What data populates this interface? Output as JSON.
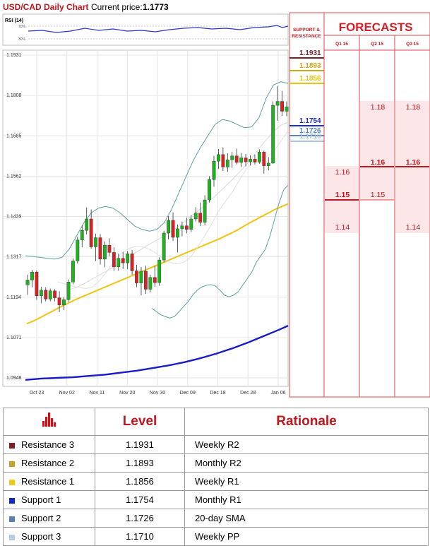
{
  "header": {
    "title": "USD/CAD Daily Chart",
    "price_label": "Current price:",
    "price_value": "1.1773"
  },
  "rsi": {
    "label": "RSI (14)",
    "levels": [
      "70%",
      "30%"
    ]
  },
  "chart_data": {
    "type": "candlestick",
    "y_ticks": [
      "1.1931",
      "1.1808",
      "1.1685",
      "1.1562",
      "1.1439",
      "1.1317",
      "1.1194",
      "1.1071",
      "1.0948"
    ],
    "x_ticks": [
      "Oct 23",
      "Nov 02",
      "Nov 11",
      "Nov 20",
      "Nov 30",
      "Dec 09",
      "Dec 18",
      "Dec 28",
      "Jan 06"
    ],
    "ylim": [
      1.0948,
      1.1931
    ],
    "candles": [
      [
        1.1231,
        1.1262,
        1.1201,
        1.1246
      ],
      [
        1.1246,
        1.1277,
        1.1224,
        1.127
      ],
      [
        1.127,
        1.1275,
        1.1186,
        1.1198
      ],
      [
        1.1198,
        1.1225,
        1.1175,
        1.1215
      ],
      [
        1.1215,
        1.1224,
        1.1181,
        1.1188
      ],
      [
        1.1188,
        1.122,
        1.1181,
        1.1213
      ],
      [
        1.1213,
        1.1218,
        1.1181,
        1.1192
      ],
      [
        1.1192,
        1.1212,
        1.1148,
        1.117
      ],
      [
        1.117,
        1.1194,
        1.1155,
        1.1186
      ],
      [
        1.1186,
        1.1248,
        1.118,
        1.124
      ],
      [
        1.124,
        1.1312,
        1.1233,
        1.1304
      ],
      [
        1.1304,
        1.1378,
        1.1296,
        1.1368
      ],
      [
        1.1368,
        1.1413,
        1.1346,
        1.1397
      ],
      [
        1.1397,
        1.1467,
        1.1385,
        1.1432
      ],
      [
        1.1432,
        1.1461,
        1.1341,
        1.1347
      ],
      [
        1.1347,
        1.1387,
        1.1304,
        1.1375
      ],
      [
        1.1375,
        1.1386,
        1.1293,
        1.131
      ],
      [
        1.131,
        1.1364,
        1.1285,
        1.1352
      ],
      [
        1.1352,
        1.1373,
        1.1318,
        1.133
      ],
      [
        1.133,
        1.1346,
        1.1274,
        1.1286
      ],
      [
        1.1286,
        1.1326,
        1.1275,
        1.1312
      ],
      [
        1.1312,
        1.1332,
        1.128,
        1.1298
      ],
      [
        1.1298,
        1.1334,
        1.1279,
        1.1326
      ],
      [
        1.1326,
        1.1338,
        1.1262,
        1.1274
      ],
      [
        1.1274,
        1.1292,
        1.1224,
        1.1237
      ],
      [
        1.1237,
        1.1286,
        1.12,
        1.1273
      ],
      [
        1.1273,
        1.129,
        1.1204,
        1.1218
      ],
      [
        1.1218,
        1.1262,
        1.1208,
        1.1254
      ],
      [
        1.1254,
        1.129,
        1.1225,
        1.1238
      ],
      [
        1.1238,
        1.1315,
        1.1228,
        1.1307
      ],
      [
        1.1307,
        1.1396,
        1.13,
        1.1389
      ],
      [
        1.1389,
        1.144,
        1.137,
        1.1428
      ],
      [
        1.1428,
        1.1452,
        1.1365,
        1.1376
      ],
      [
        1.1376,
        1.1415,
        1.133,
        1.1402
      ],
      [
        1.1402,
        1.1424,
        1.1379,
        1.1411
      ],
      [
        1.1411,
        1.1436,
        1.1388,
        1.14
      ],
      [
        1.14,
        1.1444,
        1.1392,
        1.1432
      ],
      [
        1.1432,
        1.1468,
        1.1424,
        1.145
      ],
      [
        1.145,
        1.1482,
        1.141,
        1.1422
      ],
      [
        1.1422,
        1.1504,
        1.1412,
        1.149
      ],
      [
        1.149,
        1.1562,
        1.1482,
        1.1552
      ],
      [
        1.1552,
        1.1624,
        1.153,
        1.1608
      ],
      [
        1.1608,
        1.1645,
        1.1584,
        1.1628
      ],
      [
        1.1628,
        1.165,
        1.1578,
        1.159
      ],
      [
        1.159,
        1.1632,
        1.1575,
        1.1612
      ],
      [
        1.1612,
        1.1636,
        1.1588,
        1.1624
      ],
      [
        1.1624,
        1.1646,
        1.1598,
        1.1604
      ],
      [
        1.1604,
        1.1633,
        1.159,
        1.1618
      ],
      [
        1.1618,
        1.163,
        1.1592,
        1.1606
      ],
      [
        1.1606,
        1.1626,
        1.1595,
        1.1614
      ],
      [
        1.1614,
        1.1628,
        1.1598,
        1.1605
      ],
      [
        1.1605,
        1.1644,
        1.16,
        1.1636
      ],
      [
        1.1636,
        1.164,
        1.157,
        1.1594
      ],
      [
        1.1594,
        1.162,
        1.158,
        1.1602
      ],
      [
        1.1602,
        1.179,
        1.16,
        1.1778
      ],
      [
        1.1778,
        1.1837,
        1.1731,
        1.179
      ],
      [
        1.179,
        1.1822,
        1.1746,
        1.176
      ],
      [
        1.176,
        1.179,
        1.1745,
        1.1773
      ]
    ],
    "series": [
      {
        "name": "sma20",
        "values": [
          1.1218,
          1.1225,
          1.1236,
          1.1248,
          1.126,
          1.1272,
          1.1285,
          1.1298,
          1.1312,
          1.1326,
          1.1339,
          1.1352,
          1.1364,
          1.1376,
          1.139,
          1.1404,
          1.142,
          1.1437,
          1.1454,
          1.1471,
          1.149,
          1.151,
          1.153,
          1.1551,
          1.1573,
          1.1596,
          1.1622,
          1.165,
          1.1676,
          1.17,
          1.1718,
          1.1726
        ]
      },
      {
        "name": "sma50",
        "values": [
          1.1113,
          1.1121,
          1.113,
          1.114,
          1.115,
          1.116,
          1.117,
          1.1179,
          1.1188,
          1.1196,
          1.1204,
          1.1212,
          1.122,
          1.1228,
          1.1236,
          1.1244,
          1.1252,
          1.126,
          1.1268,
          1.1276,
          1.1284,
          1.1292,
          1.13,
          1.1308,
          1.1316,
          1.1324,
          1.1332,
          1.134,
          1.1348,
          1.1356,
          1.1364,
          1.1372,
          1.1381,
          1.139,
          1.14,
          1.1411,
          1.1422,
          1.1432,
          1.1442,
          1.1452,
          1.1462,
          1.147,
          1.1478
        ]
      },
      {
        "name": "sma200",
        "values": [
          1.0942,
          1.0944,
          1.0946,
          1.0947,
          1.0948,
          1.0949,
          1.095,
          1.0952,
          1.0954,
          1.0956,
          1.0958,
          1.0961,
          1.0964,
          1.0967,
          1.097,
          1.0974,
          1.0978,
          1.0982,
          1.0986,
          1.0991,
          1.0996,
          1.1002,
          1.1008,
          1.1015,
          1.1022,
          1.103,
          1.1038,
          1.1047,
          1.1056,
          1.1066,
          1.1076,
          1.1086,
          1.1096,
          1.1107
        ]
      },
      {
        "name": "bb_upper",
        "values": [
          1.132,
          1.1318,
          1.1315,
          1.1312,
          1.131,
          1.1315,
          1.134,
          1.138,
          1.142,
          1.145,
          1.1465,
          1.147,
          1.1465,
          1.145,
          1.143,
          1.141,
          1.14,
          1.1395,
          1.14,
          1.142,
          1.146,
          1.151,
          1.156,
          1.161,
          1.165,
          1.1685,
          1.172,
          1.1735,
          1.173,
          1.172,
          1.171,
          1.1712,
          1.174,
          1.18,
          1.184,
          1.185,
          1.1845
        ]
      },
      {
        "name": "bb_lower",
        "values": [
          1.116,
          1.115,
          1.114,
          1.1135,
          1.113,
          1.1135,
          1.115,
          1.1165,
          1.118,
          1.12,
          1.1215,
          1.1225,
          1.123,
          1.1232,
          1.1228,
          1.1215,
          1.12,
          1.1195,
          1.12,
          1.121,
          1.123,
          1.125,
          1.127,
          1.13,
          1.132,
          1.134,
          1.138,
          1.143,
          1.148,
          1.152,
          1.1535
        ]
      },
      {
        "name": "bb_mid",
        "values": [
          1.124,
          1.1234,
          1.1228,
          1.1224,
          1.122,
          1.1225,
          1.1245,
          1.1272,
          1.13,
          1.1325,
          1.134,
          1.1348,
          1.1348,
          1.1341,
          1.1329,
          1.1313,
          1.13,
          1.1295,
          1.13,
          1.1315,
          1.1345,
          1.138,
          1.1415,
          1.1455,
          1.1485,
          1.1513,
          1.155,
          1.1583,
          1.1605,
          1.162,
          1.1622,
          1.164,
          1.167,
          1.17
        ]
      }
    ]
  },
  "sr_panel": {
    "header": "SUPPORT & RESISTANCE",
    "levels": [
      {
        "text": "1.1931",
        "color": "#7b1f24"
      },
      {
        "text": "1.1893",
        "color": "#d4a514"
      },
      {
        "text": "1.1856",
        "color": "#e8c410"
      },
      {
        "text": "1.1754",
        "color": "#1a2fc9"
      },
      {
        "text": "1.1726",
        "color": "#5a85c0"
      },
      {
        "text": "1.1710",
        "color": "#a9c4dc"
      }
    ]
  },
  "forecasts": {
    "title": "FORECASTS",
    "quarters": [
      "Q1 15",
      "Q2 15",
      "Q3 15"
    ],
    "values": {
      "q1": [
        "1.16",
        "1.15",
        "1.14"
      ],
      "q2": [
        "1.18",
        "1.16",
        "1.15"
      ],
      "q3": [
        "1.18",
        "1.16",
        "1.14"
      ]
    }
  },
  "table": {
    "headers": {
      "level": "Level",
      "rationale": "Rationale"
    },
    "rows": [
      {
        "name": "Resistance 3",
        "level": "1.1931",
        "rationale": "Weekly R2",
        "color": "#7b1f24"
      },
      {
        "name": "Resistance 2",
        "level": "1.1893",
        "rationale": "Monthly R2",
        "color": "#c9a12a"
      },
      {
        "name": "Resistance 1",
        "level": "1.1856",
        "rationale": "Weekly R1",
        "color": "#f2c919"
      },
      {
        "name": "Support 1",
        "level": "1.1754",
        "rationale": "Monthly R1",
        "color": "#1428c8"
      },
      {
        "name": "Support 2",
        "level": "1.1726",
        "rationale": "20-day SMA",
        "color": "#5a7fb5"
      },
      {
        "name": "Support 3",
        "level": "1.1710",
        "rationale": "Weekly PP",
        "color": "#b7cbe0"
      }
    ]
  }
}
